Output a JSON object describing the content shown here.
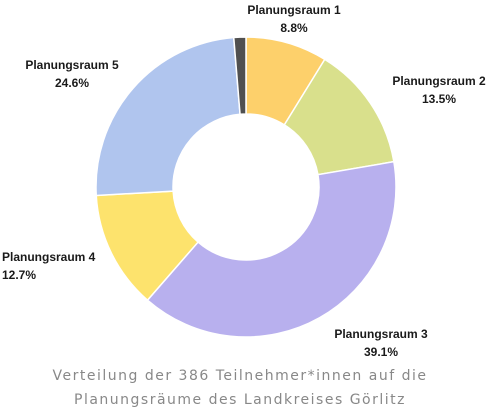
{
  "chart_data": {
    "type": "donut",
    "title_lines": [
      "Verteilung der 386 Teilnehmer*innen auf die",
      "Planungsräume des Landkreises Görlitz"
    ],
    "total": 386,
    "slices": [
      {
        "label": "Planungsraum 1",
        "percent_label": "8.8%",
        "value": 8.8,
        "color": "#fdd06b"
      },
      {
        "label": "Planungsraum 2",
        "percent_label": "13.5%",
        "value": 13.5,
        "color": "#d9e08c"
      },
      {
        "label": "Planungsraum 3",
        "percent_label": "39.1%",
        "value": 39.1,
        "color": "#b8b0ee"
      },
      {
        "label": "Planungsraum 4",
        "percent_label": "12.7%",
        "value": 12.7,
        "color": "#fde36d"
      },
      {
        "label": "Planungsraum 5",
        "percent_label": "24.6%",
        "value": 24.6,
        "color": "#b0c5ee"
      },
      {
        "label": "",
        "percent_label": "",
        "value": 1.3,
        "color": "#505050"
      }
    ]
  }
}
